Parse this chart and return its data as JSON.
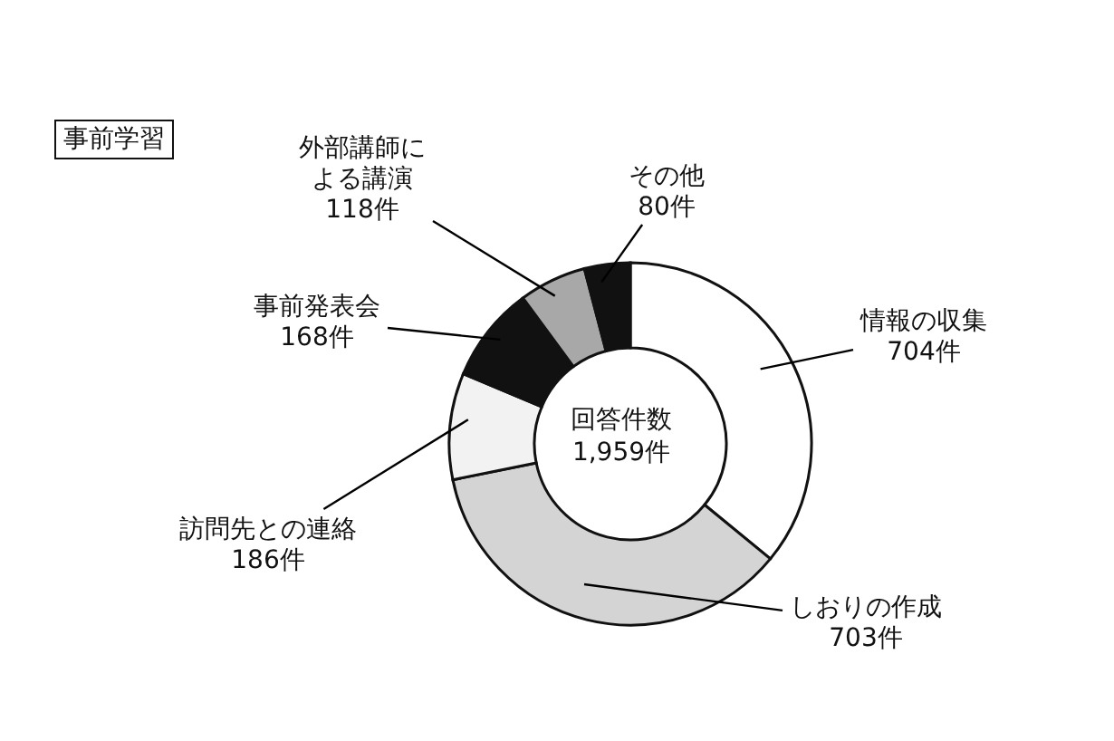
{
  "chart_data": {
    "type": "donut",
    "title": "事前学習",
    "categories": [
      "情報の収集",
      "しおりの作成",
      "訪問先との連絡",
      "事前発表会",
      "外部講師による講演",
      "その他"
    ],
    "values": [
      704,
      703,
      186,
      168,
      118,
      80
    ],
    "colors": [
      "#ffffff",
      "#d4d4d4",
      "#f2f2f2",
      "#111111",
      "#a8a8a8",
      "#111111"
    ],
    "value_labels": [
      "704件",
      "703件",
      "186件",
      "168件",
      "118件",
      "80件"
    ],
    "annotations": [
      "回答件数",
      "1,959件"
    ]
  }
}
